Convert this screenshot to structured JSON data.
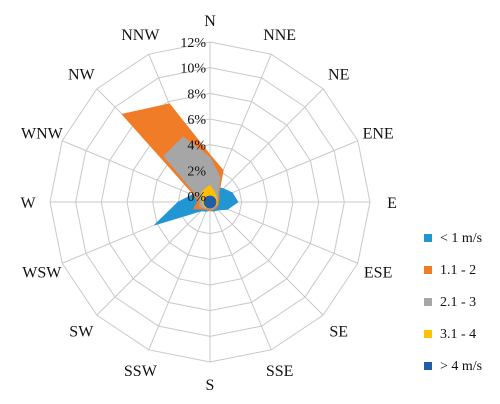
{
  "chart_data": {
    "type": "radar-area",
    "directions": [
      "N",
      "NNE",
      "NE",
      "ENE",
      "E",
      "ESE",
      "SE",
      "SSE",
      "S",
      "SSW",
      "SW",
      "WSW",
      "W",
      "WNW",
      "NW",
      "NNW"
    ],
    "radial_ticks": [
      "0%",
      "2%",
      "4%",
      "6%",
      "8%",
      "10%",
      "12%"
    ],
    "rlim": [
      0,
      12
    ],
    "grid": true,
    "legend_position": "right",
    "series": [
      {
        "name": "< 1 m/s",
        "color": "#2196d3",
        "values": [
          0.6,
          0.8,
          1.0,
          1.4,
          1.7,
          1.0,
          0.4,
          0.3,
          0.2,
          0.3,
          0.5,
          4.2,
          2.0,
          1.0,
          1.6,
          1.6
        ]
      },
      {
        "name": "1.1 - 2",
        "color": "#f07c27",
        "values": [
          3.2,
          2.2,
          0.5,
          0.3,
          0.2,
          0.2,
          0.2,
          0.2,
          0.2,
          0.2,
          0.3,
          0.9,
          0.5,
          0.8,
          9.2,
          7.8
        ]
      },
      {
        "name": "2.1 - 3",
        "color": "#a6a6a6",
        "values": [
          3.0,
          1.6,
          0.4,
          0.2,
          0.1,
          0.1,
          0.1,
          0.1,
          0.1,
          0.1,
          0.2,
          0.4,
          0.3,
          0.5,
          4.6,
          5.0
        ]
      },
      {
        "name": "3.1 - 4",
        "color": "#ffc000",
        "values": [
          0.8,
          0.4,
          0.2,
          0.1,
          0.1,
          0.1,
          0.0,
          0.0,
          0.0,
          0.0,
          0.1,
          0.1,
          0.1,
          0.2,
          0.5,
          0.6
        ]
      },
      {
        "name": "> 4 m/s",
        "color": "#1f5fa8",
        "values": [
          0.0,
          0.0,
          0.0,
          0.0,
          0.0,
          0.0,
          0.0,
          0.0,
          0.0,
          0.0,
          0.0,
          0.0,
          0.0,
          0.0,
          0.0,
          0.0
        ]
      }
    ]
  }
}
